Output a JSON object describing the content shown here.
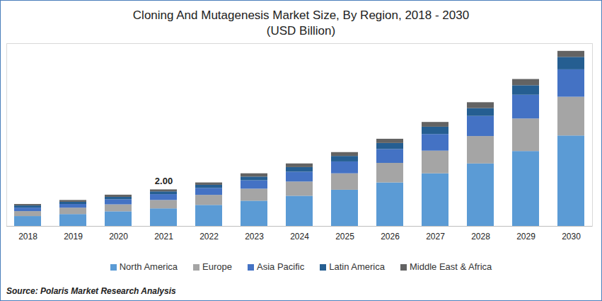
{
  "chart_data": {
    "type": "bar",
    "title": "Cloning And Mutagenesis Market Size, By Region, 2018 - 2030",
    "subtitle": "(USD Billion)",
    "source": "Source: Polaris Market Research Analysis",
    "categories": [
      "2018",
      "2019",
      "2020",
      "2021",
      "2022",
      "2023",
      "2024",
      "2025",
      "2026",
      "2027",
      "2028",
      "2029",
      "2030"
    ],
    "series": [
      {
        "name": "North America",
        "color": "#5b9bd5",
        "values": [
          0.54,
          0.65,
          0.8,
          0.96,
          1.15,
          1.38,
          1.65,
          1.98,
          2.38,
          2.88,
          3.42,
          4.1,
          4.95
        ]
      },
      {
        "name": "Europe",
        "color": "#a5a5a5",
        "values": [
          0.27,
          0.35,
          0.38,
          0.46,
          0.55,
          0.66,
          0.78,
          0.9,
          1.07,
          1.24,
          1.5,
          1.78,
          2.12
        ]
      },
      {
        "name": "Asia Pacific",
        "color": "#4472c4",
        "values": [
          0.19,
          0.2,
          0.28,
          0.32,
          0.38,
          0.46,
          0.54,
          0.65,
          0.76,
          0.91,
          1.1,
          1.3,
          1.5
        ]
      },
      {
        "name": "Latin America",
        "color": "#255e91",
        "values": [
          0.12,
          0.12,
          0.13,
          0.15,
          0.17,
          0.2,
          0.25,
          0.3,
          0.33,
          0.4,
          0.43,
          0.52,
          0.68
        ]
      },
      {
        "name": "Middle East & Africa",
        "color": "#636363",
        "values": [
          0.08,
          0.1,
          0.12,
          0.11,
          0.13,
          0.18,
          0.2,
          0.21,
          0.23,
          0.26,
          0.32,
          0.34,
          0.33
        ]
      }
    ],
    "annotations": [
      {
        "category": "2021",
        "value": 2.0,
        "text": "2.00"
      }
    ],
    "ylim": [
      0,
      10
    ],
    "stacked": true,
    "grid": false,
    "legend": "bottom",
    "tick_labels": "x"
  }
}
